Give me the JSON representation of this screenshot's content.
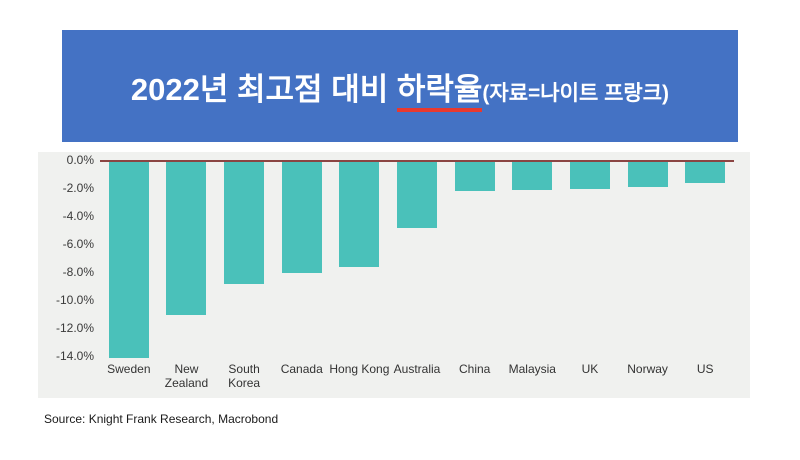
{
  "banner": {
    "title_part1": "2022년 최고점 대비 ",
    "title_underlined": "하락율",
    "title_sub": "(자료=나이트 프랑크)",
    "bg_color": "#4472c4",
    "underline_color": "#e8392e"
  },
  "chart_data": {
    "type": "bar",
    "title": "2022년 최고점 대비 하락율 (자료=나이트 프랑크)",
    "categories": [
      "Sweden",
      "New Zealand",
      "South Korea",
      "Canada",
      "Hong Kong",
      "Australia",
      "China",
      "Malaysia",
      "UK",
      "Norway",
      "US"
    ],
    "values": [
      -14.0,
      -10.9,
      -8.7,
      -7.9,
      -7.5,
      -4.7,
      -2.1,
      -2.0,
      -1.9,
      -1.8,
      -1.5
    ],
    "unit": "%",
    "xlabel": "",
    "ylabel": "",
    "ylim": [
      -14.0,
      0
    ],
    "yticks": [
      "0.0%",
      "-2.0%",
      "-4.0%",
      "-6.0%",
      "-8.0%",
      "-10.0%",
      "-12.0%",
      "-14.0%"
    ],
    "grid": false,
    "legend": "none",
    "bar_color": "#4ac1ba",
    "zero_line_color": "#8b4543",
    "panel_bg": "#f0f1ef",
    "source": "Source: Knight Frank Research, Macrobond"
  }
}
